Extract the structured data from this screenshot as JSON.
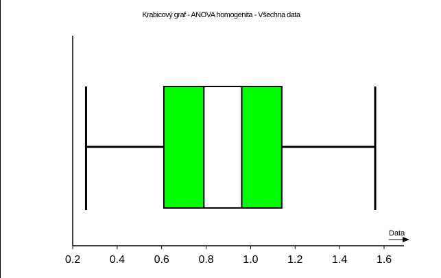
{
  "chart_data": {
    "type": "box",
    "title": "Krabicový graf - ANOVA homogenita - Všechna data",
    "xlabel": "Data",
    "xlim": [
      0.2,
      1.6
    ],
    "xticks": [
      0.2,
      0.4,
      0.6,
      0.8,
      1.0,
      1.2,
      1.4,
      1.6
    ],
    "xtick_labels": [
      "0.2",
      "0.4",
      "0.6",
      "0.8",
      "1.0",
      "1.2",
      "1.4",
      "1.6"
    ],
    "box": {
      "min": 0.26,
      "q1": 0.61,
      "lower_notch": 0.79,
      "upper_notch": 0.96,
      "q3": 1.14,
      "max": 1.56
    },
    "colors": {
      "box_fill": "#00ff00",
      "notch_fill": "#ffffff",
      "line": "#000000"
    },
    "grid": false,
    "legend": "none"
  }
}
